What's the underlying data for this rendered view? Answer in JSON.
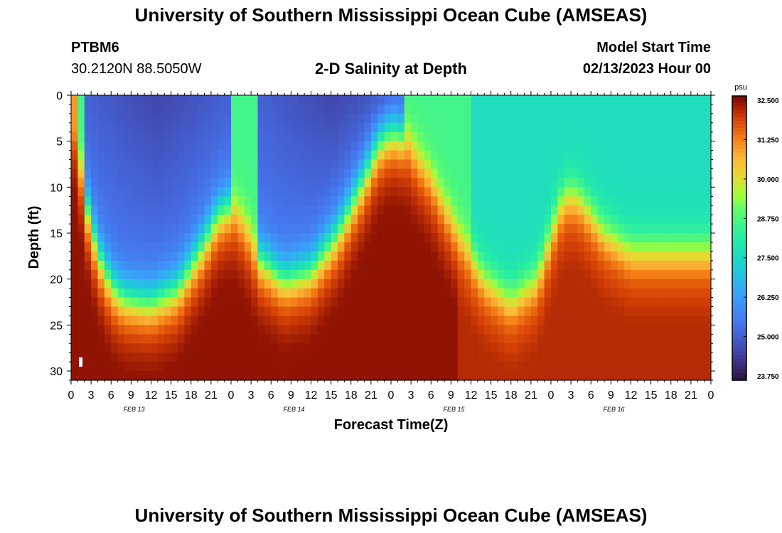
{
  "header": {
    "title": "University of Southern Mississippi Ocean Cube (AMSEAS)",
    "station_id": "PTBM6",
    "location": "30.2120N  88.5050W",
    "plot_title": "2-D Salinity at Depth",
    "model_start_label": "Model Start Time",
    "model_start_value": "02/13/2023 Hour 00"
  },
  "footer": {
    "title": "University of Southern Mississippi Ocean Cube (AMSEAS)"
  },
  "chart_data": {
    "type": "heatmap",
    "title": "2-D Salinity at Depth",
    "xlabel": "Forecast Time(Z)",
    "ylabel": "Depth (ft)",
    "units": "psu",
    "x_hours_range": [
      0,
      96
    ],
    "y_depth_range": [
      0,
      31
    ],
    "y_ticks": [
      0,
      5,
      10,
      15,
      20,
      25,
      30
    ],
    "x_tick_labels": [
      "0",
      "3",
      "6",
      "9",
      "12",
      "15",
      "18",
      "21",
      "0",
      "3",
      "6",
      "9",
      "12",
      "15",
      "18",
      "21",
      "0",
      "3",
      "6",
      "9",
      "12",
      "15",
      "18",
      "21",
      "0",
      "3",
      "6",
      "9",
      "12",
      "15",
      "18",
      "21",
      "0"
    ],
    "date_labels": [
      "FEB 13",
      "FEB 14",
      "FEB 15",
      "FEB 16"
    ],
    "colorbar": {
      "label": "psu",
      "range": [
        23.75,
        32.5
      ],
      "ticks": [
        "32.500",
        "31.250",
        "30.000",
        "28.750",
        "27.500",
        "26.250",
        "25.000",
        "23.750"
      ]
    },
    "halocline": {
      "description": "depth (ft) of the fresh/salty interface versus forecast hour",
      "hours": [
        0,
        1,
        2,
        4,
        6,
        8,
        12,
        16,
        20,
        22,
        24,
        26,
        28,
        32,
        36,
        40,
        44,
        46,
        48,
        50,
        54,
        58,
        62,
        66,
        70,
        72,
        74,
        76,
        80,
        84,
        88,
        92,
        96
      ],
      "depth_ft": [
        0,
        5,
        11,
        17,
        20.5,
        22,
        22.5,
        21,
        16,
        13,
        12,
        14,
        17.5,
        20,
        19,
        15,
        9,
        5.5,
        4,
        4.5,
        9,
        15,
        20,
        22.5,
        20,
        15,
        11,
        11,
        15,
        17,
        17,
        17,
        17
      ]
    },
    "surface_fresh_hours": [
      [
        2,
        24
      ],
      [
        28,
        50
      ]
    ],
    "salinity_min": 23.75,
    "salinity_max": 32.5
  }
}
